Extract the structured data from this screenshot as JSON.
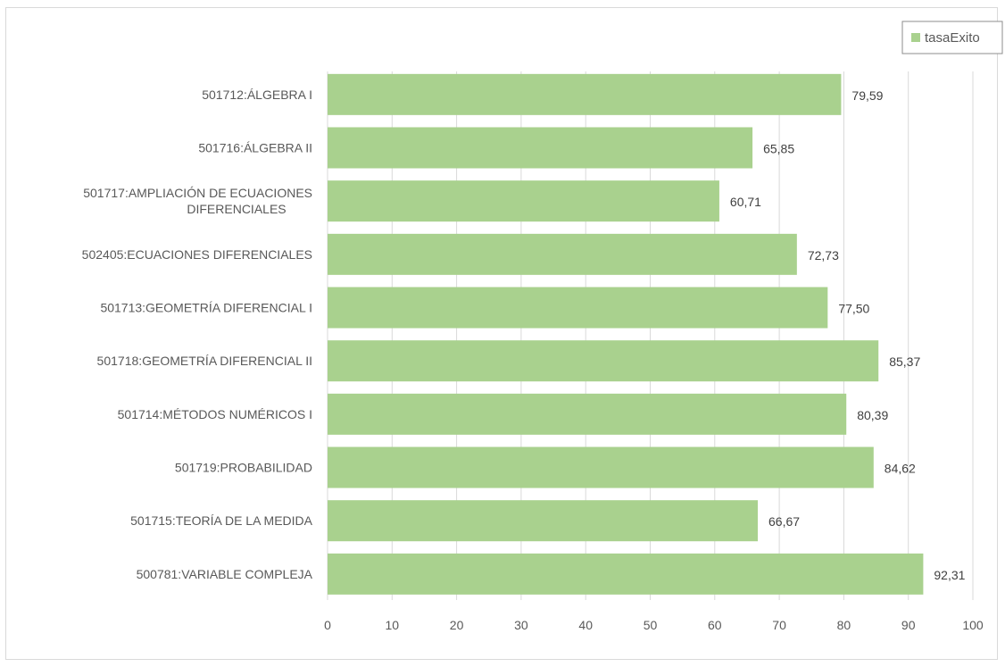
{
  "chart_data": {
    "type": "bar",
    "orientation": "horizontal",
    "title": "",
    "xlabel": "",
    "ylabel": "",
    "xlim": [
      0,
      100
    ],
    "ticks": [
      "0",
      "10",
      "20",
      "30",
      "40",
      "50",
      "60",
      "70",
      "80",
      "90",
      "100"
    ],
    "grid": "vertical",
    "legend_position": "top-right",
    "bar_color": "#a9d18e",
    "categories": [
      [
        "501712:ÁLGEBRA I"
      ],
      [
        "501716:ÁLGEBRA II"
      ],
      [
        "501717:AMPLIACIÓN DE ECUACIONES",
        "DIFERENCIALES"
      ],
      [
        "502405:ECUACIONES DIFERENCIALES"
      ],
      [
        "501713:GEOMETRÍA DIFERENCIAL I"
      ],
      [
        "501718:GEOMETRÍA DIFERENCIAL II"
      ],
      [
        "501714:MÉTODOS NUMÉRICOS I"
      ],
      [
        "501719:PROBABILIDAD"
      ],
      [
        "501715:TEORÍA DE LA MEDIDA"
      ],
      [
        "500781:VARIABLE COMPLEJA"
      ]
    ],
    "series": [
      {
        "name": "tasaExito",
        "values": [
          79.59,
          65.85,
          60.71,
          72.73,
          77.5,
          85.37,
          80.39,
          84.62,
          66.67,
          92.31
        ],
        "labels": [
          "79,59",
          "65,85",
          "60,71",
          "72,73",
          "77,50",
          "85,37",
          "80,39",
          "84,62",
          "66,67",
          "92,31"
        ]
      }
    ]
  }
}
